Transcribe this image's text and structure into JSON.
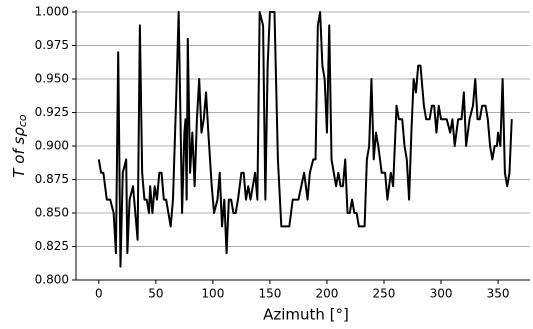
{
  "chart_data": {
    "type": "line",
    "xlabel": "Azimuth [°]",
    "ylabel": {
      "text": "T of sρ",
      "subscript": "co"
    },
    "xlim": [
      -20,
      378
    ],
    "xticks": [
      0,
      50,
      100,
      150,
      200,
      250,
      300,
      350
    ],
    "ylim": [
      0.8,
      1.0
    ],
    "yticks": [
      {
        "value": 0.8,
        "label": "0.800"
      },
      {
        "value": 0.825,
        "label": "0.825"
      },
      {
        "value": 0.85,
        "label": "0.850"
      },
      {
        "value": 0.875,
        "label": "0.875"
      },
      {
        "value": 0.9,
        "label": "0.900"
      },
      {
        "value": 0.925,
        "label": "0.925"
      },
      {
        "value": 0.95,
        "label": "0.950"
      },
      {
        "value": 0.975,
        "label": "0.975"
      },
      {
        "value": 1.0,
        "label": "1.000"
      }
    ],
    "grid": "y",
    "color": "#000000",
    "x": [
      0,
      2,
      4,
      7,
      10,
      13,
      15,
      17,
      19,
      21,
      24,
      25,
      27,
      30,
      32,
      34,
      36,
      38,
      40,
      42,
      44,
      45,
      47,
      49,
      51,
      53,
      55,
      57,
      59,
      61,
      63,
      65,
      68,
      70,
      73,
      75,
      76,
      77,
      78,
      80,
      82,
      84,
      86,
      88,
      90,
      92,
      94,
      96,
      99,
      101,
      104,
      106,
      108,
      110,
      112,
      114,
      116,
      118,
      120,
      122,
      125,
      127,
      129,
      131,
      133,
      135,
      137,
      139,
      141,
      144,
      146,
      148,
      150,
      154,
      157,
      160,
      163,
      167,
      170,
      175,
      180,
      183,
      185,
      188,
      190,
      192,
      194,
      196,
      198,
      200,
      202,
      204,
      206,
      208,
      210,
      212,
      214,
      216,
      218,
      220,
      222,
      224,
      226,
      228,
      230,
      233,
      235,
      237,
      239,
      241,
      243,
      245,
      248,
      251,
      253,
      256,
      258,
      261,
      263,
      266,
      268,
      270,
      272,
      274,
      276,
      278,
      280,
      282,
      285,
      287,
      290,
      292,
      294,
      296,
      298,
      300,
      303,
      305,
      308,
      310,
      312,
      315,
      318,
      320,
      322,
      325,
      328,
      330,
      332,
      334,
      336,
      339,
      341,
      343,
      345,
      347,
      349,
      350,
      352,
      354,
      356,
      358,
      360,
      362
    ],
    "values": [
      0.89,
      0.88,
      0.88,
      0.86,
      0.86,
      0.85,
      0.82,
      0.97,
      0.81,
      0.88,
      0.89,
      0.82,
      0.86,
      0.87,
      0.85,
      0.83,
      0.99,
      0.88,
      0.86,
      0.86,
      0.85,
      0.87,
      0.85,
      0.87,
      0.86,
      0.88,
      0.88,
      0.86,
      0.86,
      0.85,
      0.84,
      0.86,
      0.94,
      1.0,
      0.85,
      0.91,
      0.92,
      0.86,
      0.98,
      0.88,
      0.91,
      0.87,
      0.92,
      0.95,
      0.91,
      0.92,
      0.94,
      0.91,
      0.87,
      0.85,
      0.86,
      0.88,
      0.84,
      0.86,
      0.82,
      0.86,
      0.86,
      0.85,
      0.85,
      0.86,
      0.88,
      0.88,
      0.86,
      0.87,
      0.86,
      0.87,
      0.88,
      0.86,
      1.0,
      0.99,
      0.86,
      0.96,
      1.0,
      1.0,
      0.89,
      0.84,
      0.84,
      0.84,
      0.86,
      0.86,
      0.88,
      0.86,
      0.88,
      0.89,
      0.89,
      0.99,
      1.0,
      0.96,
      0.95,
      0.91,
      0.99,
      0.89,
      0.88,
      0.87,
      0.88,
      0.87,
      0.87,
      0.89,
      0.85,
      0.85,
      0.86,
      0.85,
      0.85,
      0.84,
      0.84,
      0.84,
      0.89,
      0.9,
      0.95,
      0.89,
      0.91,
      0.9,
      0.88,
      0.88,
      0.86,
      0.88,
      0.87,
      0.93,
      0.92,
      0.92,
      0.9,
      0.89,
      0.86,
      0.91,
      0.95,
      0.94,
      0.96,
      0.96,
      0.93,
      0.92,
      0.92,
      0.93,
      0.93,
      0.91,
      0.93,
      0.92,
      0.92,
      0.92,
      0.91,
      0.92,
      0.9,
      0.92,
      0.92,
      0.94,
      0.9,
      0.92,
      0.93,
      0.95,
      0.92,
      0.92,
      0.93,
      0.93,
      0.92,
      0.9,
      0.89,
      0.9,
      0.9,
      0.91,
      0.9,
      0.95,
      0.88,
      0.87,
      0.88,
      0.92
    ]
  }
}
